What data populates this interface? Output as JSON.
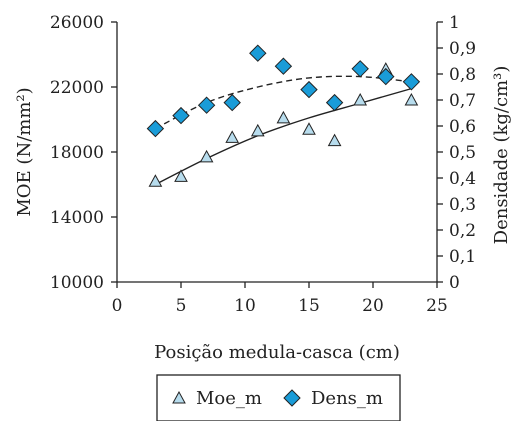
{
  "chart_data": {
    "type": "scatter",
    "xlabel": "Posição medula-casca (cm)",
    "ylabel_left": "MOE (N/mm²)",
    "ylabel_right": "Densidade (kg/cm³)",
    "x_ticks": [
      "0",
      "5",
      "10",
      "15",
      "20",
      "25"
    ],
    "y_left_ticks": [
      "10000",
      "14000",
      "18000",
      "22000",
      "26000"
    ],
    "y_right_ticks": [
      "0",
      "0,1",
      "0,2",
      "0,3",
      "0,4",
      "0,5",
      "0,6",
      "0,7",
      "0,8",
      "0,9",
      "1"
    ],
    "xlim": [
      0,
      25
    ],
    "ylim_left": [
      10000,
      26000
    ],
    "ylim_right": [
      0,
      1
    ],
    "grid": false,
    "legend_position": "bottom",
    "series": [
      {
        "name": "Moe_m",
        "axis": "left",
        "marker": "triangle",
        "color": "#b7dced",
        "points": [
          [
            3,
            16200
          ],
          [
            5,
            16500
          ],
          [
            7,
            17700
          ],
          [
            9,
            18900
          ],
          [
            11,
            19300
          ],
          [
            13,
            20100
          ],
          [
            15,
            19400
          ],
          [
            17,
            18700
          ],
          [
            19,
            21200
          ],
          [
            21,
            23100
          ],
          [
            23,
            21200
          ]
        ],
        "trend": {
          "style": "solid",
          "points": [
            [
              3,
              16000
            ],
            [
              7,
              17600
            ],
            [
              11,
              19000
            ],
            [
              15,
              20100
            ],
            [
              19,
              21000
            ],
            [
              23,
              21900
            ]
          ]
        }
      },
      {
        "name": "Dens_m",
        "axis": "right",
        "marker": "diamond",
        "color": "#1a9cd8",
        "points": [
          [
            3,
            0.59
          ],
          [
            5,
            0.64
          ],
          [
            7,
            0.68
          ],
          [
            9,
            0.69
          ],
          [
            11,
            0.88
          ],
          [
            13,
            0.83
          ],
          [
            15,
            0.74
          ],
          [
            17,
            0.69
          ],
          [
            19,
            0.82
          ],
          [
            21,
            0.79
          ],
          [
            23,
            0.77
          ]
        ],
        "trend": {
          "style": "dashed",
          "points": [
            [
              3,
              0.59
            ],
            [
              7,
              0.69
            ],
            [
              11,
              0.75
            ],
            [
              15,
              0.785
            ],
            [
              19,
              0.79
            ],
            [
              23,
              0.77
            ]
          ]
        }
      }
    ]
  }
}
